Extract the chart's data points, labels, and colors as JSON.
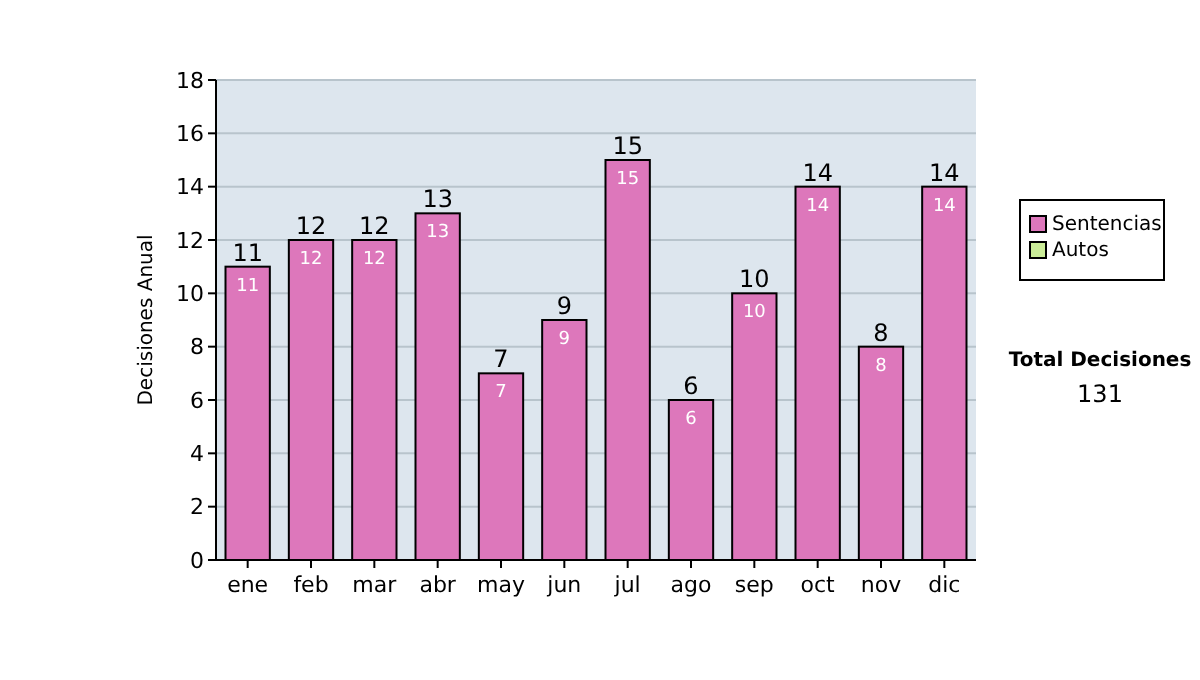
{
  "chart_data": {
    "type": "bar",
    "stacked": true,
    "ylabel": "Decisiones Anual",
    "categories": [
      "ene",
      "feb",
      "mar",
      "abr",
      "may",
      "jun",
      "jul",
      "ago",
      "sep",
      "oct",
      "nov",
      "dic"
    ],
    "series": [
      {
        "name": "Sentencias",
        "color": "#dd77bb",
        "values": [
          11,
          12,
          12,
          13,
          7,
          9,
          15,
          6,
          10,
          14,
          8,
          14
        ],
        "value_labels": [
          "11",
          "12",
          "12",
          "13",
          "7",
          "9",
          "15",
          "6",
          "10",
          "14",
          "8",
          "14"
        ]
      },
      {
        "name": "Autos",
        "color": "#ccee99",
        "values": [
          0,
          0,
          0,
          0,
          0,
          0,
          0,
          0,
          0,
          0,
          0,
          0
        ]
      }
    ],
    "totals": [
      "11",
      "12",
      "12",
      "13",
      "7",
      "9",
      "15",
      "6",
      "10",
      "14",
      "8",
      "14"
    ],
    "ylim": [
      0,
      18
    ],
    "yticks": [
      0,
      2,
      4,
      6,
      8,
      10,
      12,
      14,
      16,
      18
    ],
    "grid": "y",
    "legend": "right",
    "annotations": [
      "Total Decisiones",
      "131"
    ]
  }
}
